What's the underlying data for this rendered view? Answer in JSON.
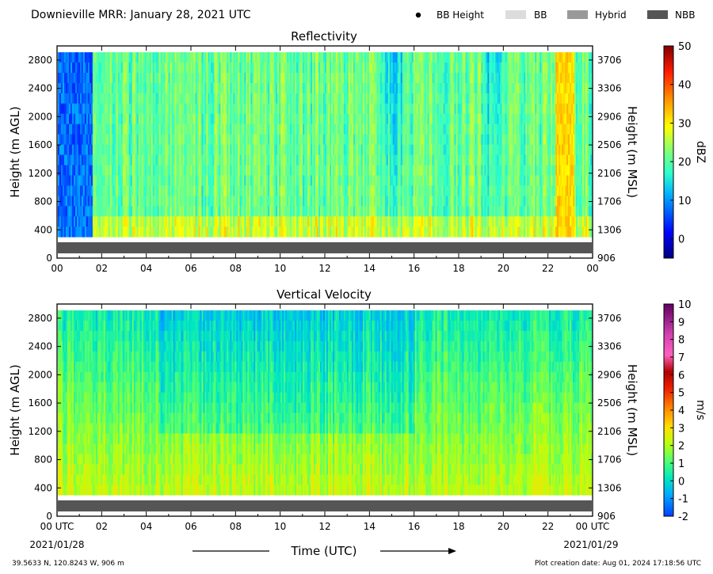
{
  "header": {
    "title": "Downieville MRR:  January 28, 2021 UTC",
    "legend": [
      {
        "label": "BB Height",
        "symbol": "dot",
        "color": "#000000"
      },
      {
        "label": "BB",
        "symbol": "swatch",
        "color": "#dcdcdc"
      },
      {
        "label": "Hybrid",
        "symbol": "swatch",
        "color": "#999999"
      },
      {
        "label": "NBB",
        "symbol": "swatch",
        "color": "#555555"
      }
    ]
  },
  "footer": {
    "location": "39.5633 N, 120.8243 W, 906 m",
    "created": "Plot creation date: Aug 01, 2024 17:18:56 UTC",
    "xlabel": "Time (UTC)"
  },
  "chart_data": [
    {
      "type": "heatmap",
      "title": "Reflectivity",
      "ylabel": "Height (m AGL)",
      "ylabel_right": "Height (m MSL)",
      "y_ticks": [
        "0",
        "400",
        "800",
        "1200",
        "1600",
        "2000",
        "2400",
        "2800"
      ],
      "y_ticks_right": [
        "906",
        "1306",
        "1706",
        "2106",
        "2506",
        "2906",
        "3306",
        "3706"
      ],
      "x_ticks": [
        "00",
        "02",
        "04",
        "06",
        "08",
        "10",
        "12",
        "14",
        "16",
        "18",
        "20",
        "22",
        "00"
      ],
      "ylim": [
        0,
        3000
      ],
      "xlim": [
        0,
        24
      ],
      "colorbar": {
        "label": "dBZ",
        "range": [
          -5,
          50
        ],
        "ticks": [
          "0",
          "10",
          "20",
          "30",
          "40",
          "50"
        ]
      },
      "nbb_band": {
        "from": 0,
        "to": 200
      }
    },
    {
      "type": "heatmap",
      "title": "Vertical Velocity",
      "ylabel": "Height (m AGL)",
      "ylabel_right": "Height (m MSL)",
      "y_ticks": [
        "0",
        "400",
        "800",
        "1200",
        "1600",
        "2000",
        "2400",
        "2800"
      ],
      "y_ticks_right": [
        "906",
        "1306",
        "1706",
        "2106",
        "2506",
        "2906",
        "3306",
        "3706"
      ],
      "x_ticks": [
        "00 UTC",
        "02",
        "04",
        "06",
        "08",
        "10",
        "12",
        "14",
        "16",
        "18",
        "20",
        "22",
        "00 UTC"
      ],
      "x_dates": {
        "start": "2021/01/28",
        "end": "2021/01/29"
      },
      "ylim": [
        0,
        3000
      ],
      "xlim": [
        0,
        24
      ],
      "colorbar": {
        "label": "m/s",
        "range": [
          -2,
          10
        ],
        "ticks": [
          "-2",
          "-1",
          "0",
          "1",
          "2",
          "3",
          "4",
          "5",
          "6",
          "7",
          "8",
          "9",
          "10"
        ]
      },
      "nbb_band": {
        "from": 0,
        "to": 200
      }
    }
  ]
}
